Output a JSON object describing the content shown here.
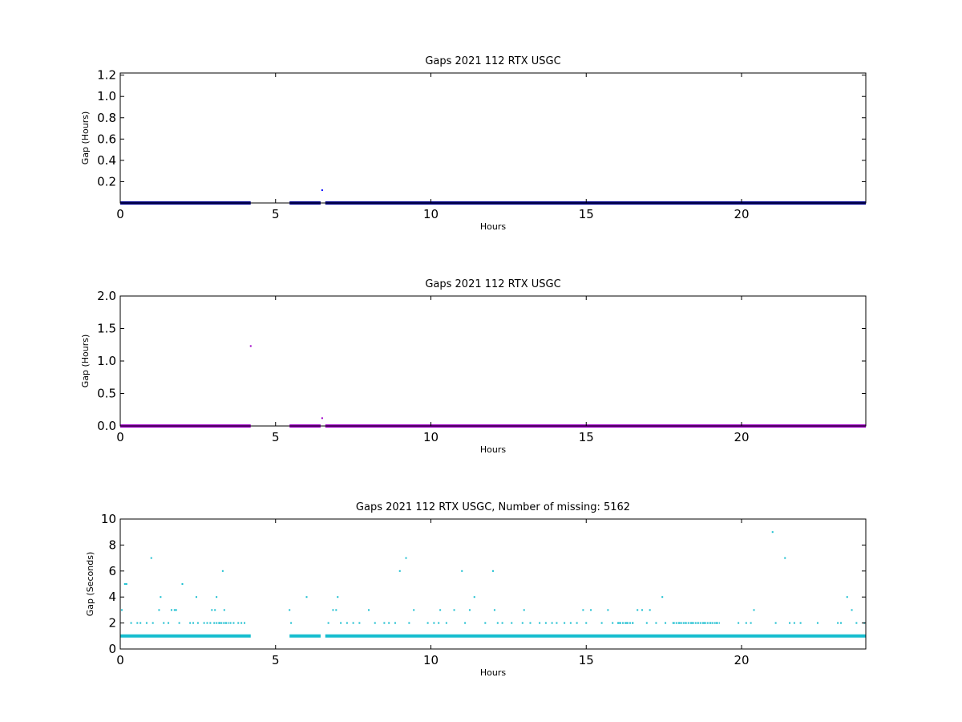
{
  "chart_data": [
    {
      "type": "scatter",
      "title": "Gaps 2021 112 RTX  USGC",
      "xlabel": "Hours",
      "ylabel": "Gap (Hours)",
      "xlim": [
        0,
        24
      ],
      "ylim": [
        0,
        1.22
      ],
      "xticks": [
        0,
        5,
        10,
        15,
        20
      ],
      "yticks": [
        0.2,
        0.4,
        0.6,
        0.8,
        1.0,
        1.2
      ],
      "ytick_decimals": 1,
      "grid": false,
      "color": "#0000ff",
      "baseline_segments": [
        [
          0,
          4.2
        ],
        [
          5.45,
          6.45
        ],
        [
          6.6,
          24
        ]
      ],
      "baseline_value": 0.0,
      "baseline_color": "#00008b",
      "points": [
        [
          6.5,
          0.12
        ]
      ]
    },
    {
      "type": "scatter",
      "title": "Gaps 2021 112 RTX  USGC",
      "xlabel": "Hours",
      "ylabel": "Gap (Hours)",
      "xlim": [
        0,
        24
      ],
      "ylim": [
        0,
        2.0
      ],
      "xticks": [
        0,
        5,
        10,
        15,
        20
      ],
      "yticks": [
        0.0,
        0.5,
        1.0,
        1.5,
        2.0
      ],
      "ytick_decimals": 1,
      "grid": false,
      "color": "#a000c8",
      "baseline_segments": [
        [
          0,
          4.2
        ],
        [
          5.45,
          6.45
        ],
        [
          6.6,
          24
        ]
      ],
      "baseline_value": 0.0,
      "baseline_color": "#a000c8",
      "points": [
        [
          4.2,
          1.23
        ],
        [
          6.5,
          0.12
        ]
      ]
    },
    {
      "type": "scatter",
      "title": "Gaps 2021 112 RTX  USGC, Number of missing: 5162",
      "xlabel": "Hours",
      "ylabel": "Gap (Seconds)",
      "xlim": [
        0,
        24
      ],
      "ylim": [
        0,
        10
      ],
      "xticks": [
        0,
        5,
        10,
        15,
        20
      ],
      "yticks": [
        0,
        2,
        4,
        6,
        8,
        10
      ],
      "ytick_decimals": 0,
      "grid": false,
      "color": "#17becf",
      "baseline_segments": [
        [
          0,
          4.2
        ],
        [
          5.45,
          6.45
        ],
        [
          6.6,
          24
        ]
      ],
      "baseline_value": 1,
      "baseline_color": "#17becf",
      "points": [
        [
          0.05,
          3
        ],
        [
          0.15,
          5
        ],
        [
          0.2,
          5
        ],
        [
          0.35,
          2
        ],
        [
          0.55,
          2
        ],
        [
          0.65,
          2
        ],
        [
          0.85,
          2
        ],
        [
          1.0,
          7
        ],
        [
          1.05,
          2
        ],
        [
          1.25,
          3
        ],
        [
          1.3,
          4
        ],
        [
          1.4,
          2
        ],
        [
          1.55,
          2
        ],
        [
          1.65,
          3
        ],
        [
          1.75,
          3
        ],
        [
          1.8,
          3
        ],
        [
          1.9,
          2
        ],
        [
          2.0,
          5
        ],
        [
          2.25,
          2
        ],
        [
          2.35,
          2
        ],
        [
          2.45,
          4
        ],
        [
          2.5,
          2
        ],
        [
          2.7,
          2
        ],
        [
          2.8,
          2
        ],
        [
          2.9,
          2
        ],
        [
          2.95,
          3
        ],
        [
          3.05,
          3
        ],
        [
          3.1,
          4
        ],
        [
          3.2,
          2
        ],
        [
          3.3,
          6
        ],
        [
          3.35,
          3
        ],
        [
          3.4,
          2
        ],
        [
          3.55,
          2
        ],
        [
          3.65,
          2
        ],
        [
          3.8,
          2
        ],
        [
          3.9,
          2
        ],
        [
          4.0,
          2
        ],
        [
          5.45,
          3
        ],
        [
          5.5,
          2
        ],
        [
          6.0,
          4
        ],
        [
          6.7,
          2
        ],
        [
          6.85,
          3
        ],
        [
          6.95,
          3
        ],
        [
          7.0,
          4
        ],
        [
          7.1,
          2
        ],
        [
          7.3,
          2
        ],
        [
          7.5,
          2
        ],
        [
          7.7,
          2
        ],
        [
          8.0,
          3
        ],
        [
          8.2,
          2
        ],
        [
          8.5,
          2
        ],
        [
          8.65,
          2
        ],
        [
          8.85,
          2
        ],
        [
          9.0,
          6
        ],
        [
          9.2,
          7
        ],
        [
          9.3,
          2
        ],
        [
          9.45,
          3
        ],
        [
          9.9,
          2
        ],
        [
          10.1,
          2
        ],
        [
          10.25,
          2
        ],
        [
          10.3,
          3
        ],
        [
          10.5,
          2
        ],
        [
          10.75,
          3
        ],
        [
          11.0,
          6
        ],
        [
          11.1,
          2
        ],
        [
          11.25,
          3
        ],
        [
          11.4,
          4
        ],
        [
          11.75,
          2
        ],
        [
          12.0,
          6
        ],
        [
          12.05,
          3
        ],
        [
          12.15,
          2
        ],
        [
          12.3,
          2
        ],
        [
          12.6,
          2
        ],
        [
          12.95,
          2
        ],
        [
          13.0,
          3
        ],
        [
          13.2,
          2
        ],
        [
          13.5,
          2
        ],
        [
          13.7,
          2
        ],
        [
          13.9,
          2
        ],
        [
          14.05,
          2
        ],
        [
          14.3,
          2
        ],
        [
          14.5,
          2
        ],
        [
          14.7,
          2
        ],
        [
          14.9,
          3
        ],
        [
          15.0,
          2
        ],
        [
          15.15,
          3
        ],
        [
          15.5,
          2
        ],
        [
          15.7,
          3
        ],
        [
          15.85,
          2
        ],
        [
          16.05,
          2
        ],
        [
          16.3,
          2
        ],
        [
          16.5,
          2
        ],
        [
          16.65,
          3
        ],
        [
          16.8,
          3
        ],
        [
          16.95,
          2
        ],
        [
          17.05,
          3
        ],
        [
          17.25,
          2
        ],
        [
          17.45,
          4
        ],
        [
          17.55,
          2
        ],
        [
          17.8,
          2
        ],
        [
          18.0,
          2
        ],
        [
          18.2,
          2
        ],
        [
          18.4,
          2
        ],
        [
          18.6,
          2
        ],
        [
          18.8,
          2
        ],
        [
          19.0,
          2
        ],
        [
          19.2,
          2
        ],
        [
          19.9,
          2
        ],
        [
          20.15,
          2
        ],
        [
          20.3,
          2
        ],
        [
          20.4,
          3
        ],
        [
          21.0,
          9
        ],
        [
          21.1,
          2
        ],
        [
          21.4,
          7
        ],
        [
          21.55,
          2
        ],
        [
          21.7,
          2
        ],
        [
          21.9,
          2
        ],
        [
          22.45,
          2
        ],
        [
          23.1,
          2
        ],
        [
          23.2,
          2
        ],
        [
          23.4,
          4
        ],
        [
          23.55,
          3
        ],
        [
          23.7,
          2
        ],
        [
          23.95,
          2
        ]
      ],
      "dense_ranges": [
        [
          17.8,
          19.3,
          2
        ],
        [
          16.0,
          16.5,
          2
        ],
        [
          3.0,
          3.5,
          2
        ]
      ]
    }
  ]
}
